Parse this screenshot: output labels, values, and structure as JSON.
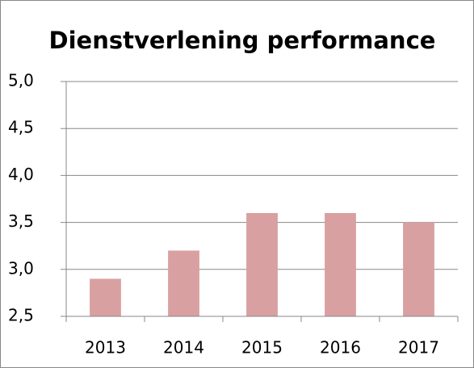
{
  "chart_data": {
    "type": "bar",
    "title": "Dienstverlening performance",
    "categories": [
      "2013",
      "2014",
      "2015",
      "2016",
      "2017"
    ],
    "values": [
      2.9,
      3.2,
      3.6,
      3.6,
      3.5
    ],
    "color": "#d9a0a1",
    "ylim": [
      2.5,
      5.0
    ],
    "yticks": [
      {
        "value": 2.5,
        "label": "2,5"
      },
      {
        "value": 3.0,
        "label": "3,0"
      },
      {
        "value": 3.5,
        "label": "3,5"
      },
      {
        "value": 4.0,
        "label": "4,0"
      },
      {
        "value": 4.5,
        "label": "4,5"
      },
      {
        "value": 5.0,
        "label": "5,0"
      }
    ],
    "grid": true
  }
}
